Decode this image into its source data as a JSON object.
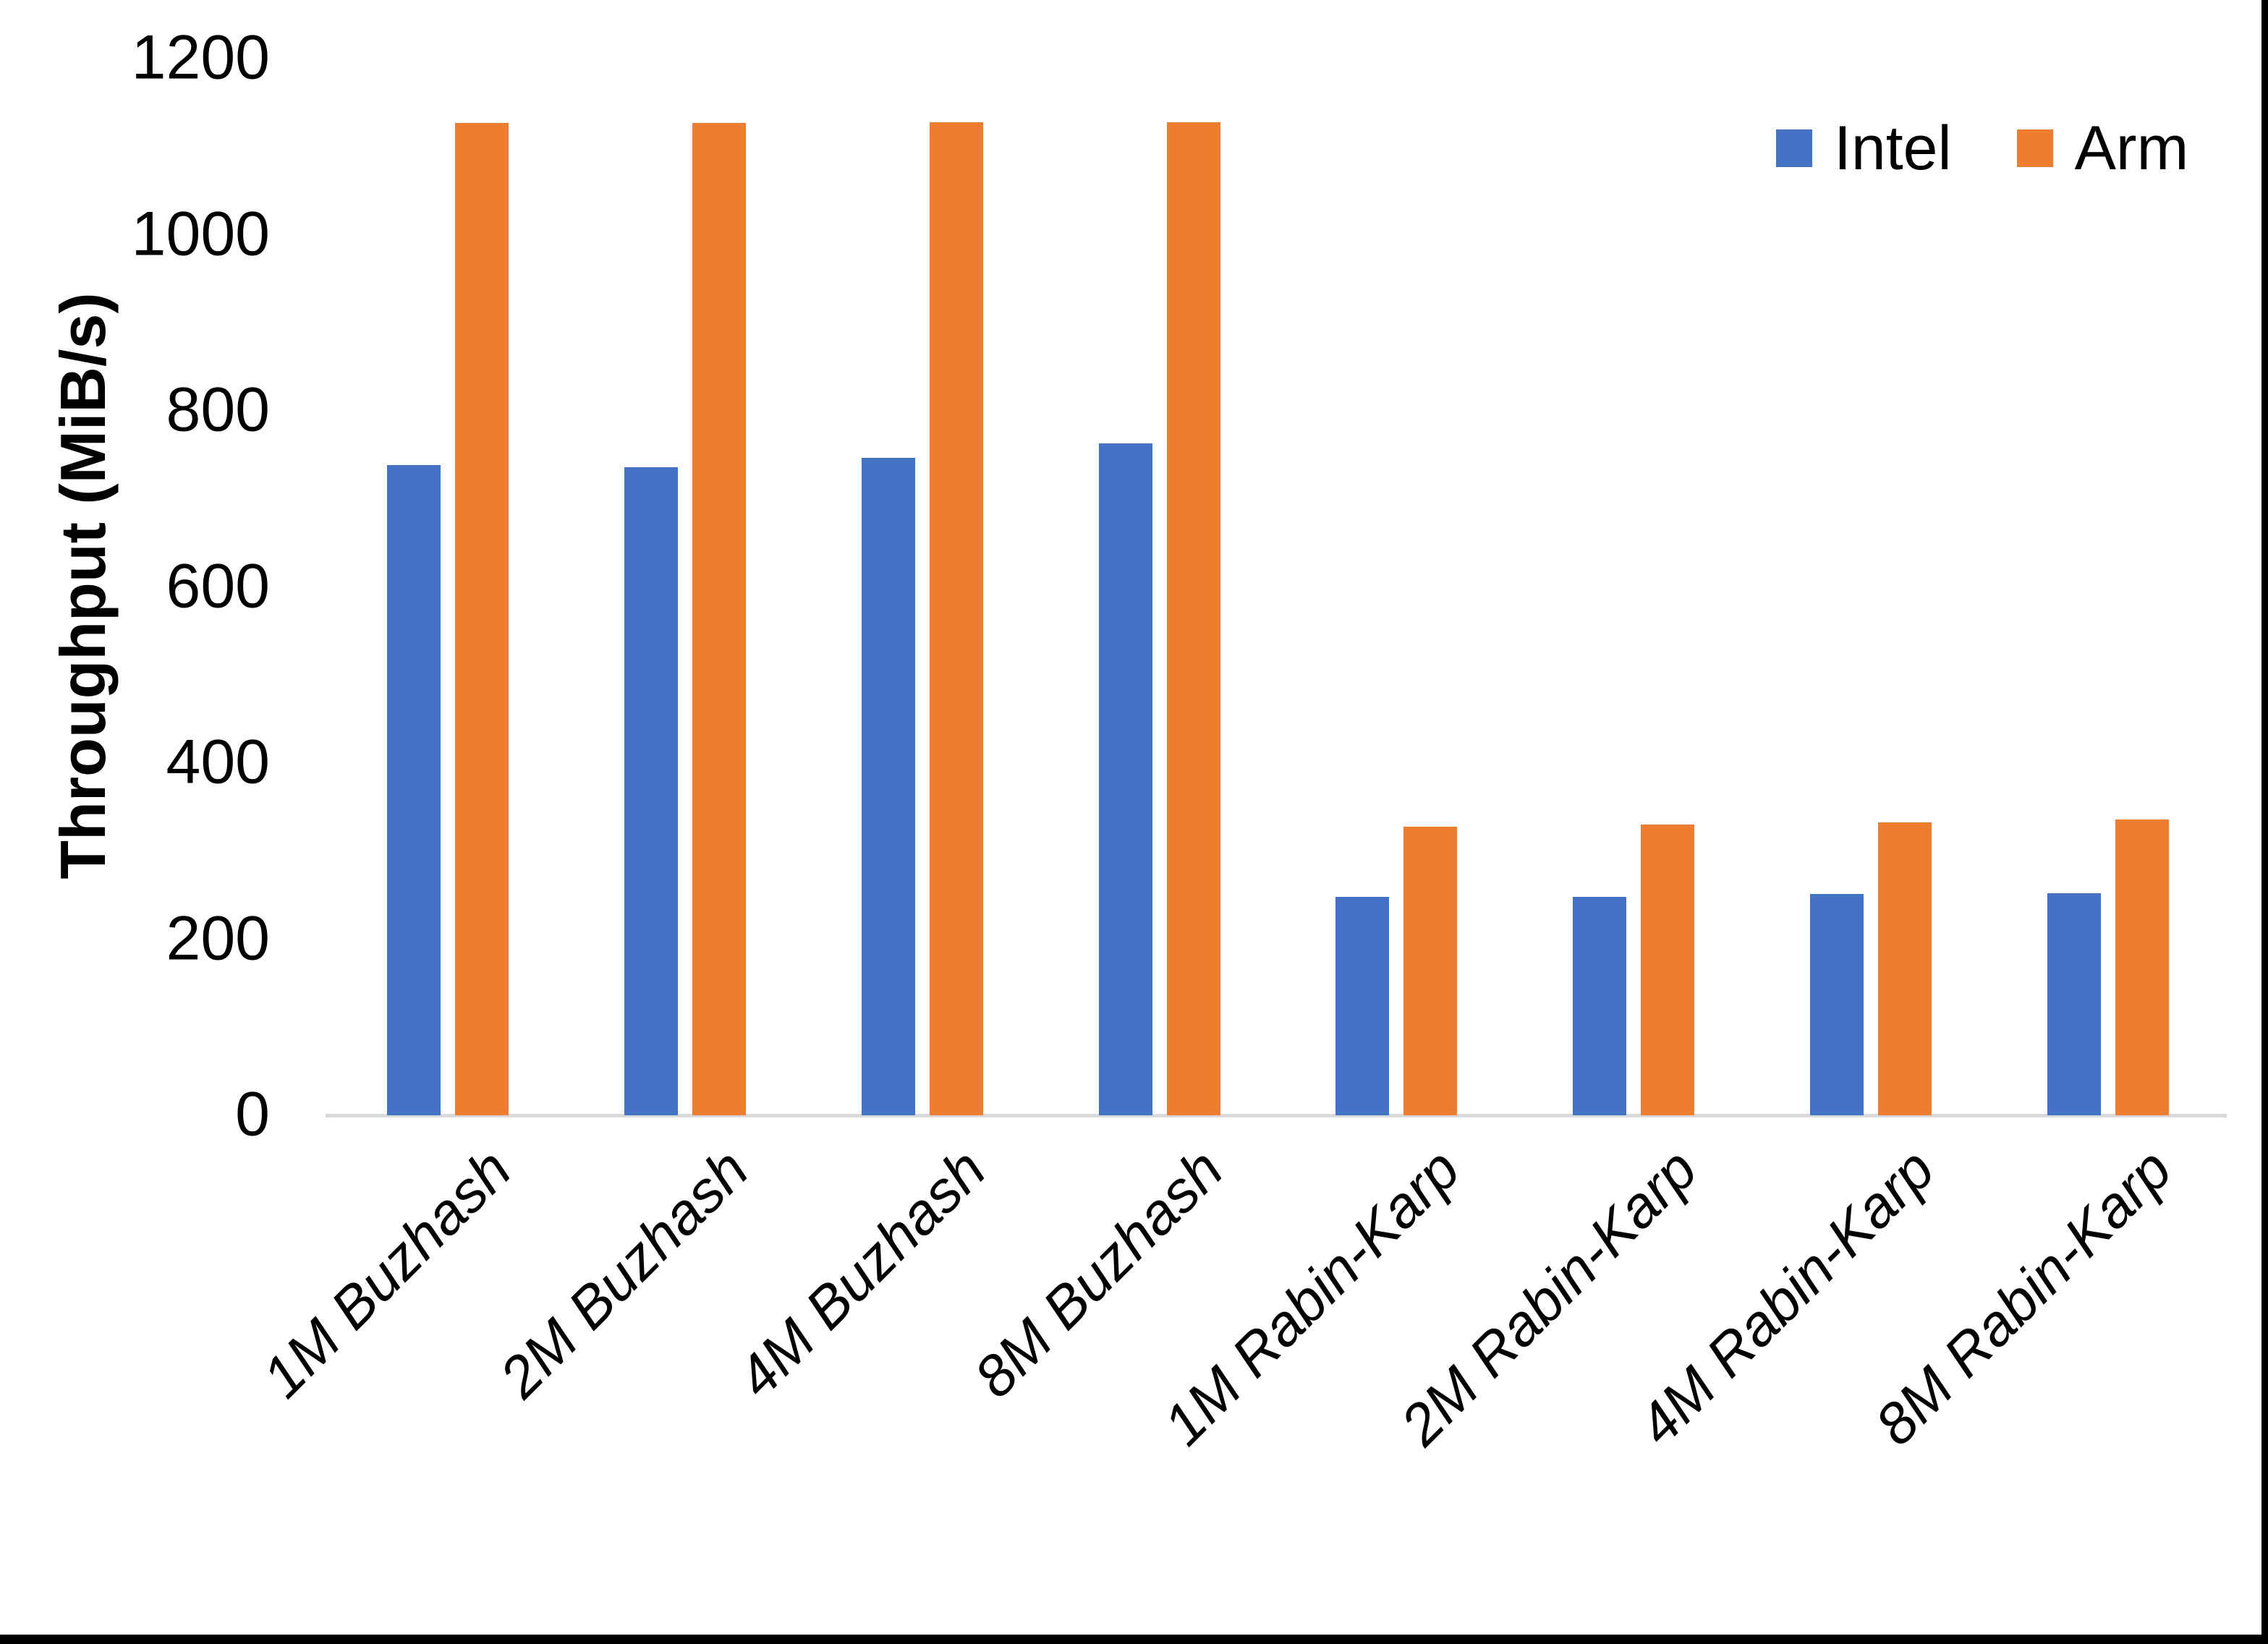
{
  "chart_data": {
    "type": "bar",
    "title": "",
    "xlabel": "",
    "ylabel": "Throughput (MiB/s)",
    "categories": [
      "1M Buzhash",
      "2M Buzhash",
      "4M Buzhash",
      "8M Buzhash",
      "1M Rabin-Karp",
      "2M Rabin-Karp",
      "4M Rabin-Karp",
      "8M Rabin-Karp"
    ],
    "series": [
      {
        "name": "Intel",
        "color": "#4472c4",
        "values": [
          738,
          736,
          747,
          763,
          248,
          248,
          251,
          252
        ]
      },
      {
        "name": "Arm",
        "color": "#ed7d31",
        "values": [
          1127,
          1127,
          1128,
          1128,
          328,
          330,
          333,
          336
        ]
      }
    ],
    "ylim": [
      0,
      1200
    ],
    "yticks": [
      0,
      200,
      400,
      600,
      800,
      1000,
      1200
    ],
    "grid": false,
    "legend_position": "top-right",
    "axis_line_color": "#d9d9d9",
    "background_color": "#ffffff",
    "border_color": "#000000"
  }
}
